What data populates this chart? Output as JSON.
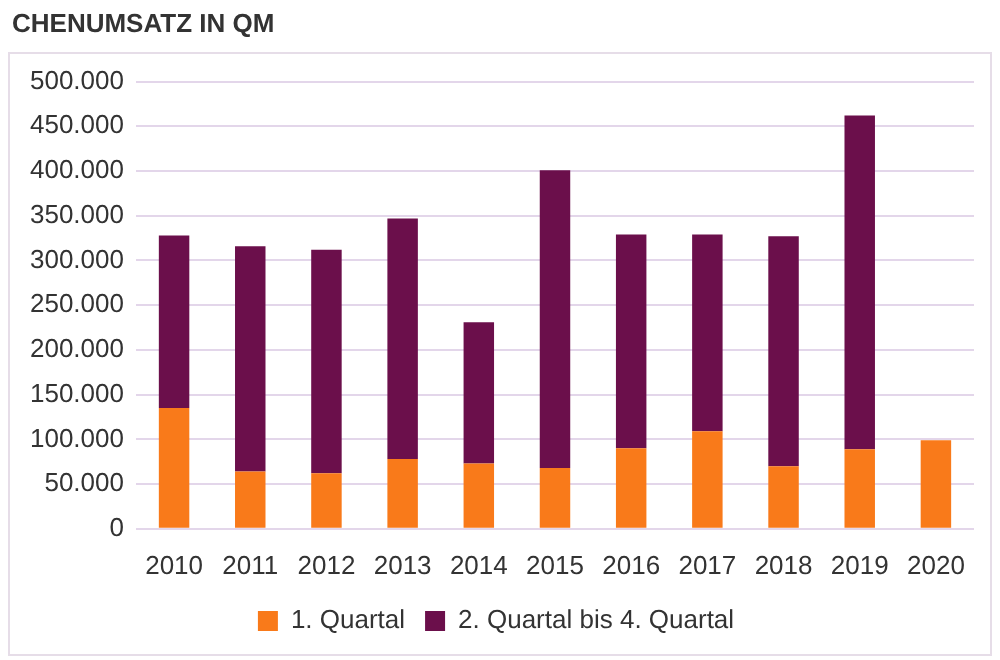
{
  "chart_data": {
    "type": "bar",
    "title": "CHENUMSATZ IN QM",
    "stacked": true,
    "grid": "y",
    "legend": "bottom",
    "categories": [
      "2010",
      "2011",
      "2012",
      "2013",
      "2014",
      "2015",
      "2016",
      "2017",
      "2018",
      "2019",
      "2020"
    ],
    "series": [
      {
        "name": "1. Quartal",
        "color": "#f97a1a",
        "values": [
          135000,
          64000,
          62000,
          78000,
          73000,
          68000,
          90000,
          109000,
          70000,
          89000,
          99000
        ]
      },
      {
        "name": "2. Quartal bis 4. Quartal",
        "color": "#6b0f4b",
        "values": [
          193000,
          252000,
          250000,
          269000,
          158000,
          333000,
          239000,
          220000,
          257000,
          373000,
          null
        ]
      }
    ],
    "ylim": [
      0,
      500000
    ],
    "yticks": [
      0,
      {
        "value": 50000,
        "label": "50.000"
      },
      {
        "value": 100000,
        "label": "100.000"
      },
      {
        "value": 150000,
        "label": "150.000"
      },
      {
        "value": 200000,
        "label": "200.000"
      },
      {
        "value": 250000,
        "label": "250.000"
      },
      {
        "value": 300000,
        "label": "300.000"
      },
      {
        "value": 350000,
        "label": "350.000"
      },
      {
        "value": 400000,
        "label": "400.000"
      },
      {
        "value": 450000,
        "label": "450.000"
      },
      {
        "value": 500000,
        "label": "500.000"
      }
    ]
  }
}
